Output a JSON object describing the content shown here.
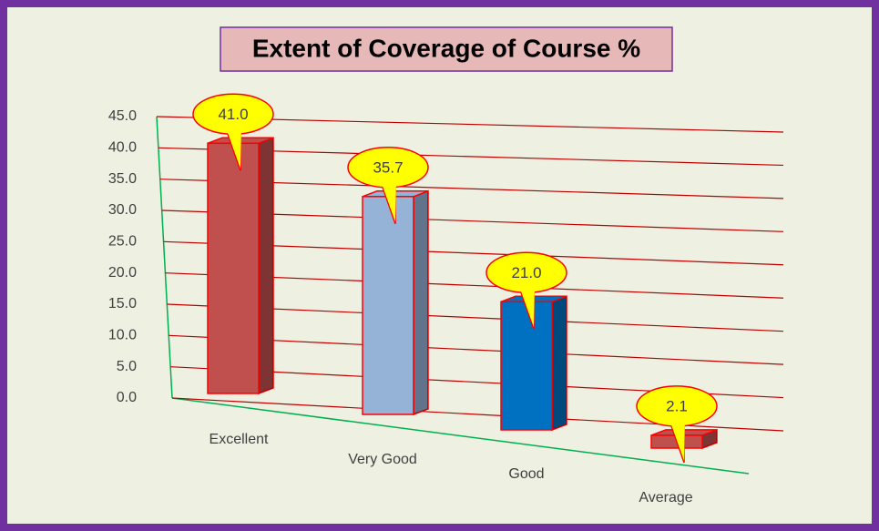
{
  "chart_data": {
    "type": "bar3d",
    "title": "Extent of Coverage of Course %",
    "categories": [
      "Excellent",
      "Very Good",
      "Good",
      "Average"
    ],
    "values": [
      41.0,
      35.7,
      21.0,
      2.1
    ],
    "value_labels": [
      "41.0",
      "35.7",
      "21.0",
      "2.1"
    ],
    "colors": [
      "#c0504d",
      "#95b3d7",
      "#0070c0",
      "#c0504d"
    ],
    "ylim": [
      0,
      45
    ],
    "yticks": [
      {
        "value": 0,
        "label": "0.0"
      },
      {
        "value": 5,
        "label": "5.0"
      },
      {
        "value": 10,
        "label": "10.0"
      },
      {
        "value": 15,
        "label": "15.0"
      },
      {
        "value": 20,
        "label": "20.0"
      },
      {
        "value": 25,
        "label": "25.0"
      },
      {
        "value": 30,
        "label": "30.0"
      },
      {
        "value": 35,
        "label": "35.0"
      },
      {
        "value": 40,
        "label": "40.0"
      },
      {
        "value": 45,
        "label": "45.0"
      }
    ],
    "grid": true
  }
}
